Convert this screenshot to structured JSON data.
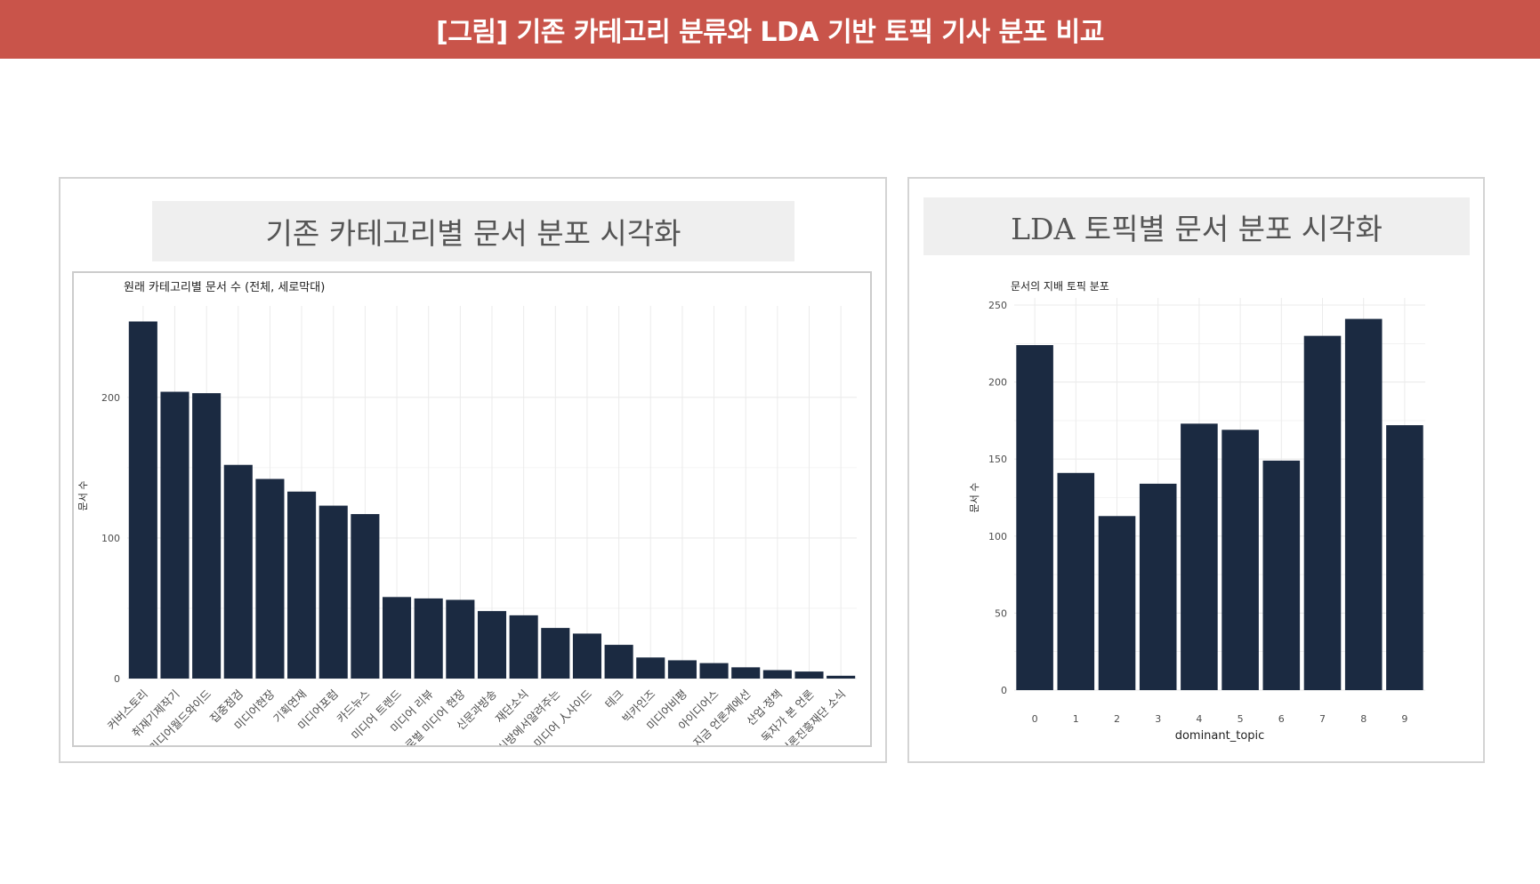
{
  "banner": {
    "title": "[그림] 기존 카테고리 분류와 LDA 기반 토픽 기사 분포 비교"
  },
  "left_panel": {
    "title": "기존 카테고리별 문서 분포 시각화"
  },
  "right_panel": {
    "title": "LDA 토픽별 문서 분포 시각화"
  },
  "colors": {
    "banner": "#c9544a",
    "bar": "#1b2a41",
    "grid": "#ebebeb"
  },
  "chart_data": [
    {
      "type": "bar",
      "title": "원래 카테고리별 문서 수 (전체, 세로막대)",
      "xlabel": "",
      "ylabel": "문서 수",
      "ylim": [
        0,
        260
      ],
      "yticks": [
        0,
        100,
        200
      ],
      "grid": true,
      "categories": [
        "커버스토리",
        "취재기제작기",
        "미디어월드와이드",
        "집중점검",
        "미디어현장",
        "기획연재",
        "미디어포럼",
        "카드뉴스",
        "미디어 트렌드",
        "미디어 리뷰",
        "글로벌 미디어 현장",
        "신문과방송",
        "재단소식",
        "신방에서알려주는",
        "미디어 人사이드",
        "테크",
        "빅카인즈",
        "미디어비평",
        "아이디어스",
        "지금 언론계에선",
        "산업·정책",
        "독자가 본 언론",
        "한국언론진흥재단 소식"
      ],
      "values": [
        254,
        204,
        203,
        152,
        142,
        133,
        123,
        117,
        58,
        57,
        56,
        48,
        45,
        36,
        32,
        24,
        15,
        13,
        11,
        8,
        6,
        5,
        2
      ]
    },
    {
      "type": "bar",
      "title": "문서의 지배 토픽 분포",
      "xlabel": "dominant_topic",
      "ylabel": "문서 수",
      "ylim": [
        0,
        250
      ],
      "yticks": [
        0,
        50,
        100,
        150,
        200,
        250
      ],
      "grid": true,
      "categories": [
        "0",
        "1",
        "2",
        "3",
        "4",
        "5",
        "6",
        "7",
        "8",
        "9"
      ],
      "values": [
        224,
        141,
        113,
        134,
        173,
        169,
        149,
        230,
        241,
        172
      ]
    }
  ]
}
